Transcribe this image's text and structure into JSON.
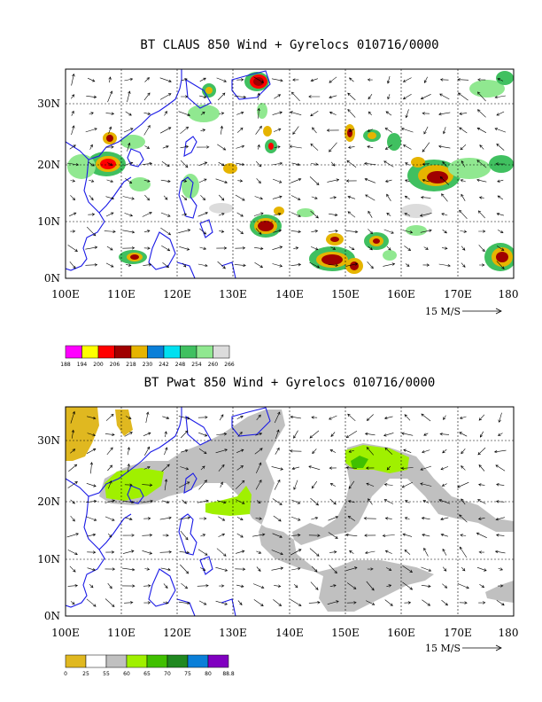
{
  "panels": [
    {
      "id": "clouds",
      "title": "BT CLAUS 850 Wind + Gyrelocs 010716/0000",
      "y_ticks": [
        "30N",
        "20N",
        "10N",
        "0N"
      ],
      "x_ticks": [
        "100E",
        "110E",
        "120E",
        "130E",
        "140E",
        "150E",
        "160E",
        "170E",
        "180"
      ],
      "ref_vector_label": "15 M/S",
      "colorbar": {
        "colors": [
          "#ff00ff",
          "#ffff00",
          "#ff0000",
          "#a00000",
          "#e6b400",
          "#0a7fd8",
          "#00e0f0",
          "#40c060",
          "#90e890",
          "#dcdcdc"
        ],
        "labels": [
          "188",
          "194",
          "200",
          "206",
          "218",
          "230",
          "242",
          "248",
          "254",
          "260",
          "266"
        ]
      }
    },
    {
      "id": "pwat",
      "title": "BT Pwat 850 Wind + Gyrelocs 010716/0000",
      "y_ticks": [
        "30N",
        "20N",
        "10N",
        "0N"
      ],
      "x_ticks": [
        "100E",
        "110E",
        "120E",
        "130E",
        "140E",
        "150E",
        "160E",
        "170E",
        "180"
      ],
      "ref_vector_label": "15 M/S",
      "colorbar": {
        "colors": [
          "#e0b820",
          "#ffffff",
          "#c0c0c0",
          "#a0f000",
          "#40c000",
          "#208820",
          "#0a7fd8",
          "#8000c0"
        ],
        "labels": [
          "0",
          "25",
          "55",
          "60",
          "65",
          "70",
          "75",
          "80",
          "88.8"
        ]
      }
    }
  ]
}
